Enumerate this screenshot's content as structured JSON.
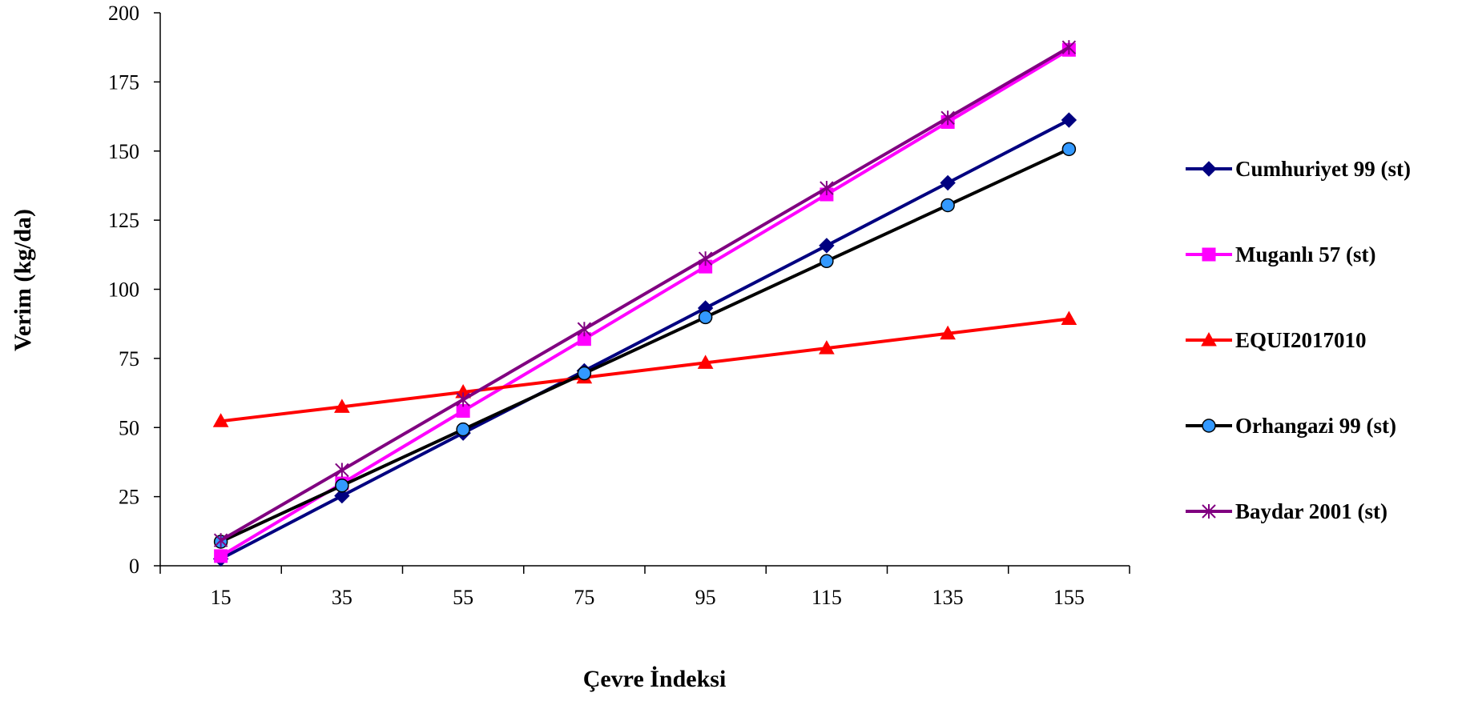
{
  "chart_data": {
    "type": "line",
    "title": "",
    "xlabel": "Çevre İndeksi",
    "ylabel": "Verim (kg/da)",
    "x": [
      15,
      35,
      55,
      75,
      95,
      115,
      135,
      155
    ],
    "xlim": [
      5,
      165
    ],
    "ylim": [
      0,
      200
    ],
    "yticks": [
      0,
      25,
      50,
      75,
      100,
      125,
      150,
      175,
      200
    ],
    "grid": false,
    "legend_position": "right",
    "series": [
      {
        "name": "Cumhuriyet 99 (st)",
        "color": "#000080",
        "marker": "diamond",
        "values": [
          2.5,
          25.3,
          48,
          70.5,
          93.2,
          115.8,
          138.5,
          161.2
        ]
      },
      {
        "name": "Muganlı 57 (st)",
        "color": "#FF00FF",
        "marker": "square",
        "values": [
          3.5,
          29.8,
          56,
          82,
          108.2,
          134.3,
          160.5,
          186.6
        ]
      },
      {
        "name": "EQUI2017010",
        "color": "#FF0000",
        "marker": "triangle",
        "values": [
          52.3,
          57.5,
          62.8,
          68.1,
          73.4,
          78.7,
          84,
          89.3
        ]
      },
      {
        "name": "Orhangazi 99 (st)",
        "color": "#000000",
        "marker": "circle",
        "markerFill": "#3399FF",
        "values": [
          8.7,
          29,
          49.3,
          69.6,
          89.9,
          110.2,
          130.4,
          150.7
        ]
      },
      {
        "name": "Baydar 2001 (st)",
        "color": "#800080",
        "marker": "star",
        "values": [
          9.2,
          34.6,
          60.1,
          85.6,
          111.1,
          136.6,
          162,
          187.5
        ]
      }
    ]
  }
}
